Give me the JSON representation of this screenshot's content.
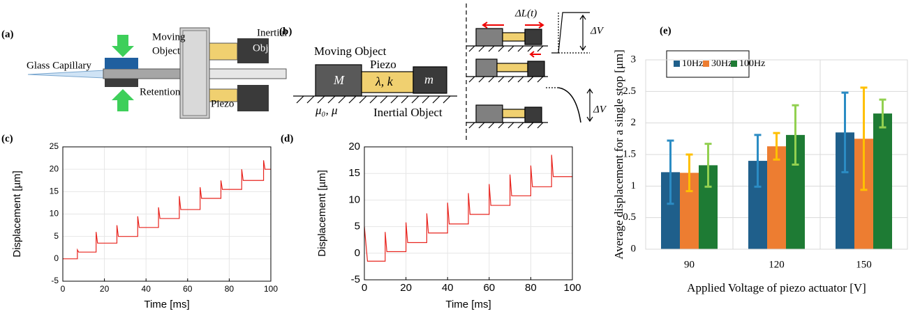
{
  "panel_labels": [
    "(a)",
    "(b)",
    "(c)",
    "(d)",
    "(e)"
  ],
  "diagram_a": {
    "glass_capillary": "Glass Capillary",
    "moving_object": [
      "Moving",
      "Object"
    ],
    "inertial_object": [
      "Inertial",
      "Object"
    ],
    "retention": "Retention",
    "piezo": "Piezo"
  },
  "diagram_b": {
    "moving_object": "Moving Object",
    "piezo": "Piezo",
    "mass_big": "M",
    "piezo_params": "λ, k",
    "mass_small": "m",
    "friction": "μ₀, μ",
    "inertial_object": "Inertial Object",
    "delta_l": "ΔL(t)",
    "delta_v_top": "ΔV",
    "delta_v_bottom": "ΔV"
  },
  "chart_data": [
    {
      "type": "line",
      "xlabel": "Time [ms]",
      "ylabel": "Displacement [µm]",
      "color": "#e8251f",
      "grid": true,
      "x": [
        0,
        7,
        7,
        7.6,
        16,
        16,
        16.7,
        26,
        26,
        26.7,
        36,
        36,
        36.7,
        46,
        46,
        46.7,
        56,
        56,
        56.7,
        66,
        66,
        66.7,
        76,
        76,
        76.7,
        86,
        86,
        86.7,
        96.5,
        96.5,
        97.2,
        100
      ],
      "values": [
        0,
        0,
        2,
        1.5,
        1.5,
        6,
        3.5,
        3.5,
        7.5,
        5,
        5,
        9.5,
        7,
        7,
        11.5,
        9,
        9,
        14,
        11,
        11,
        16,
        13.5,
        13.5,
        17.5,
        15.5,
        15.5,
        20,
        17.5,
        17.5,
        22,
        20,
        20
      ],
      "xlim": [
        0,
        100
      ],
      "xticks": [
        0,
        20,
        40,
        60,
        80,
        100
      ],
      "ylim": [
        -5,
        25
      ],
      "yticks": [
        -5,
        0,
        5,
        10,
        15,
        20,
        25
      ]
    },
    {
      "type": "line",
      "xlabel": "Time [ms]",
      "ylabel": "Displacement [µm]",
      "color": "#e8251f",
      "grid": true,
      "x": [
        0,
        1.5,
        10,
        10,
        10.8,
        20,
        20,
        20.8,
        30,
        30,
        30.8,
        40,
        40,
        40.8,
        50,
        50,
        50.8,
        60,
        60,
        60.8,
        70,
        70,
        70.8,
        80,
        80,
        80.8,
        90,
        90,
        90.8,
        100
      ],
      "values": [
        5,
        -1.5,
        -1.5,
        4,
        0.3,
        0.3,
        5.8,
        2,
        2,
        7.5,
        3.8,
        3.8,
        9.5,
        5.5,
        5.5,
        11.3,
        7.3,
        7.3,
        13,
        9,
        9,
        14.8,
        10.8,
        10.8,
        16.5,
        12.5,
        12.5,
        18.5,
        14.4,
        14.4
      ],
      "xlim": [
        0,
        100
      ],
      "xticks": [
        0,
        20,
        40,
        60,
        80,
        100
      ],
      "ylim": [
        -5,
        20
      ],
      "yticks": [
        -5,
        0,
        5,
        10,
        15,
        20
      ]
    },
    {
      "type": "bar",
      "xlabel": "Applied Voltage of piezo actuator [V]",
      "ylabel": "Average displacement for a single stop [μm]",
      "grid": true,
      "categories": [
        "90",
        "120",
        "150"
      ],
      "series": [
        {
          "name": "10Hz",
          "color": "#1f5f8b",
          "error_color": "#2b8cc4",
          "values": [
            1.22,
            1.4,
            1.85
          ],
          "errors": [
            0.5,
            0.41,
            0.63
          ]
        },
        {
          "name": "30Hz",
          "color": "#ed7d31",
          "error_color": "#ffc000",
          "values": [
            1.21,
            1.63,
            1.75
          ],
          "errors": [
            0.29,
            0.21,
            0.81
          ]
        },
        {
          "name": "100Hz",
          "color": "#1e7b34",
          "error_color": "#92d050",
          "values": [
            1.33,
            1.81,
            2.15
          ],
          "errors": [
            0.34,
            0.47,
            0.22
          ]
        }
      ],
      "ylim": [
        0,
        3
      ],
      "yticks": [
        0,
        0.5,
        1,
        1.5,
        2,
        2.5,
        3
      ]
    }
  ]
}
